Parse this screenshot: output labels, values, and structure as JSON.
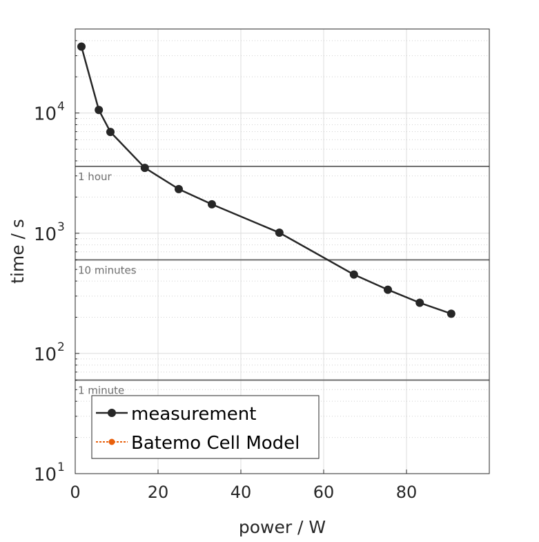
{
  "chart_data": {
    "type": "line",
    "xlabel": "power / W",
    "ylabel": "time / s",
    "xlim": [
      0,
      100
    ],
    "ylim": [
      10,
      50000
    ],
    "yscale": "log",
    "grid": true,
    "x_ticks": [
      0,
      20,
      40,
      60,
      80
    ],
    "x_tick_labels": [
      "0",
      "20",
      "40",
      "60",
      "80"
    ],
    "y_ticks": [
      10,
      100,
      1000,
      10000
    ],
    "y_tick_labels": [
      {
        "base": "10",
        "exp": "1"
      },
      {
        "base": "10",
        "exp": "2"
      },
      {
        "base": "10",
        "exp": "3"
      },
      {
        "base": "10",
        "exp": "4"
      }
    ],
    "series": [
      {
        "name": "measurement",
        "color": "#262626",
        "x": [
          1.5,
          5.7,
          8.5,
          16.8,
          25,
          33,
          49.3,
          67.3,
          75.5,
          83.2,
          90.8
        ],
        "y": [
          35700,
          10600,
          6960,
          3500,
          2330,
          1740,
          1010,
          453,
          339,
          264,
          214
        ]
      },
      {
        "name": "Batemo Cell Model",
        "color": "#e8600c",
        "x": [],
        "y": []
      }
    ],
    "reference_lines": [
      {
        "y": 3600,
        "label": "1 hour"
      },
      {
        "y": 600,
        "label": "10 minutes"
      },
      {
        "y": 60,
        "label": "1 minute"
      }
    ],
    "legend": {
      "placement": "bottom-left",
      "entries": [
        "measurement",
        "Batemo Cell Model"
      ]
    }
  }
}
